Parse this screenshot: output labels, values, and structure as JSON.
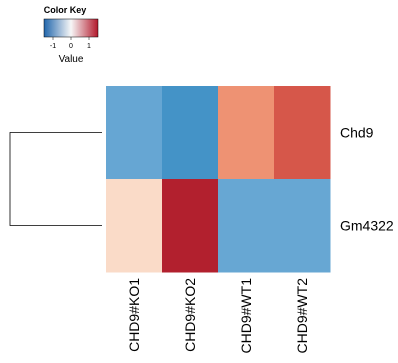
{
  "chart_data": {
    "type": "heatmap",
    "title": "",
    "color_key": {
      "title": "Color Key",
      "xlabel": "Value",
      "ticks": [
        "-1",
        "0",
        "1"
      ],
      "range": [
        -1.5,
        1.5
      ],
      "low_color": "#2166ac",
      "mid_color": "#f7f7f7",
      "high_color": "#b2182b"
    },
    "rows": [
      "Chd9",
      "Gm4322"
    ],
    "columns": [
      "CHD9#KO1",
      "CHD9#KO2",
      "CHD9#WT1",
      "CHD9#WT2"
    ],
    "values": [
      [
        -0.9,
        -1.1,
        0.65,
        0.9
      ],
      [
        0.2,
        1.45,
        -0.85,
        -0.85
      ]
    ],
    "cell_colors": [
      [
        "#66a6d3",
        "#4493c7",
        "#ee9273",
        "#d6574a"
      ],
      [
        "#fadbc8",
        "#b2202e",
        "#67a7d3",
        "#67a7d3"
      ]
    ],
    "row_dendrogram": true
  }
}
